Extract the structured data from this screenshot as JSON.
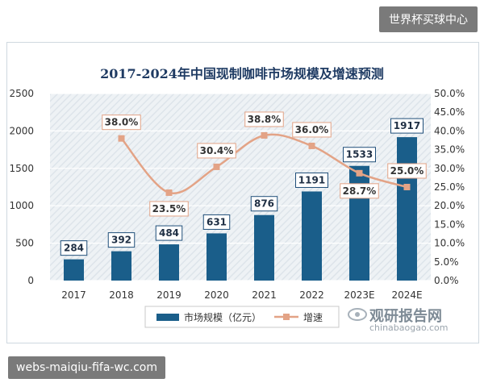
{
  "watermark_top": "世界杯买球中心",
  "watermark_bottom": "webs-maiqiu-fifa-wc.com",
  "brand": {
    "cn": "观研报告网",
    "en": "chinabaogao.com"
  },
  "colors": {
    "bar": "#1a5e8a",
    "line": "#e3a386",
    "title": "#1f3b63",
    "label_border": "#1f4e79"
  },
  "chart_data": {
    "type": "bar",
    "title": "2017-2024年中国现制咖啡市场规模及增速预测",
    "categories": [
      "2017",
      "2018",
      "2019",
      "2020",
      "2021",
      "2022",
      "2023E",
      "2024E"
    ],
    "series": [
      {
        "name": "市场规模（亿元）",
        "type": "bar",
        "axis": "left",
        "values": [
          284,
          392,
          484,
          631,
          876,
          1191,
          1533,
          1917
        ],
        "labels": [
          "284",
          "392",
          "484",
          "631",
          "876",
          "1191",
          "1533",
          "1917"
        ]
      },
      {
        "name": "增速",
        "type": "line",
        "axis": "right",
        "values": [
          null,
          38.0,
          23.5,
          30.4,
          38.8,
          36.0,
          28.7,
          25.0
        ],
        "labels": [
          "",
          "38.0%",
          "23.5%",
          "30.4%",
          "38.8%",
          "36.0%",
          "28.7%",
          "25.0%"
        ]
      }
    ],
    "y_left": {
      "min": 0,
      "max": 2500,
      "ticks": [
        "0",
        "500",
        "1000",
        "1500",
        "2000",
        "2500"
      ]
    },
    "y_right": {
      "min": 0,
      "max": 50,
      "ticks": [
        "0.0%",
        "5.0%",
        "10.0%",
        "15.0%",
        "20.0%",
        "25.0%",
        "30.0%",
        "35.0%",
        "40.0%",
        "45.0%",
        "50.0%"
      ]
    },
    "legend": {
      "position": "bottom",
      "items": [
        "市场规模（亿元）",
        "增速"
      ]
    }
  }
}
